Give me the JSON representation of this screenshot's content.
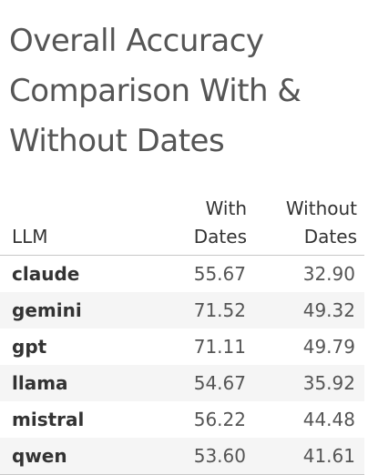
{
  "chart_data": {
    "type": "table",
    "title": "Overall Accuracy Comparison With & Without Dates",
    "columns": {
      "llm": "LLM",
      "with": [
        "With",
        "Dates"
      ],
      "without": [
        "Without",
        "Dates"
      ]
    },
    "rows": [
      {
        "llm": "claude",
        "with": "55.67",
        "without": "32.90"
      },
      {
        "llm": "gemini",
        "with": "71.52",
        "without": "49.32"
      },
      {
        "llm": "gpt",
        "with": "71.11",
        "without": "49.79"
      },
      {
        "llm": "llama",
        "with": "54.67",
        "without": "35.92"
      },
      {
        "llm": "mistral",
        "with": "56.22",
        "without": "44.48"
      },
      {
        "llm": "qwen",
        "with": "53.60",
        "without": "41.61"
      }
    ]
  }
}
